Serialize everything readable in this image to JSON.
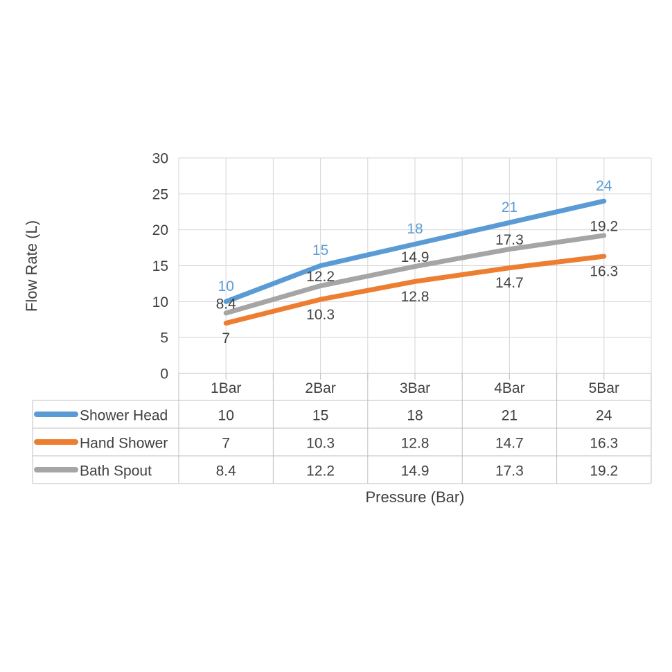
{
  "chart_data": {
    "type": "line",
    "title": "",
    "xlabel": "Pressure (Bar)",
    "ylabel": "Flow Rate (L)",
    "categories": [
      "1Bar",
      "2Bar",
      "3Bar",
      "4Bar",
      "5Bar"
    ],
    "series": [
      {
        "name": "Shower Head",
        "values": [
          10,
          15,
          18,
          21,
          24
        ],
        "color": "#5B9BD5",
        "label_position": "above",
        "label_color": "#5B9BD5"
      },
      {
        "name": "Hand Shower",
        "values": [
          7,
          10.3,
          12.8,
          14.7,
          16.3
        ],
        "color": "#ED7D31",
        "label_position": "below",
        "label_color": "#404040"
      },
      {
        "name": "Bath Spout",
        "values": [
          8.4,
          12.2,
          14.9,
          17.3,
          19.2
        ],
        "color": "#A5A5A5",
        "label_position": "above",
        "label_color": "#404040"
      }
    ],
    "y_axis": {
      "min": 0,
      "max": 30,
      "step": 5,
      "tick_labels": [
        "0",
        "5",
        "10",
        "15",
        "20",
        "25",
        "30"
      ]
    },
    "grid": true,
    "data_labels": true,
    "legend_position": "data-table-left"
  },
  "colors": {
    "background": "#FFFFFF",
    "gridline": "#D6D6D6",
    "border": "#BFBFBF",
    "text": "#404040"
  }
}
